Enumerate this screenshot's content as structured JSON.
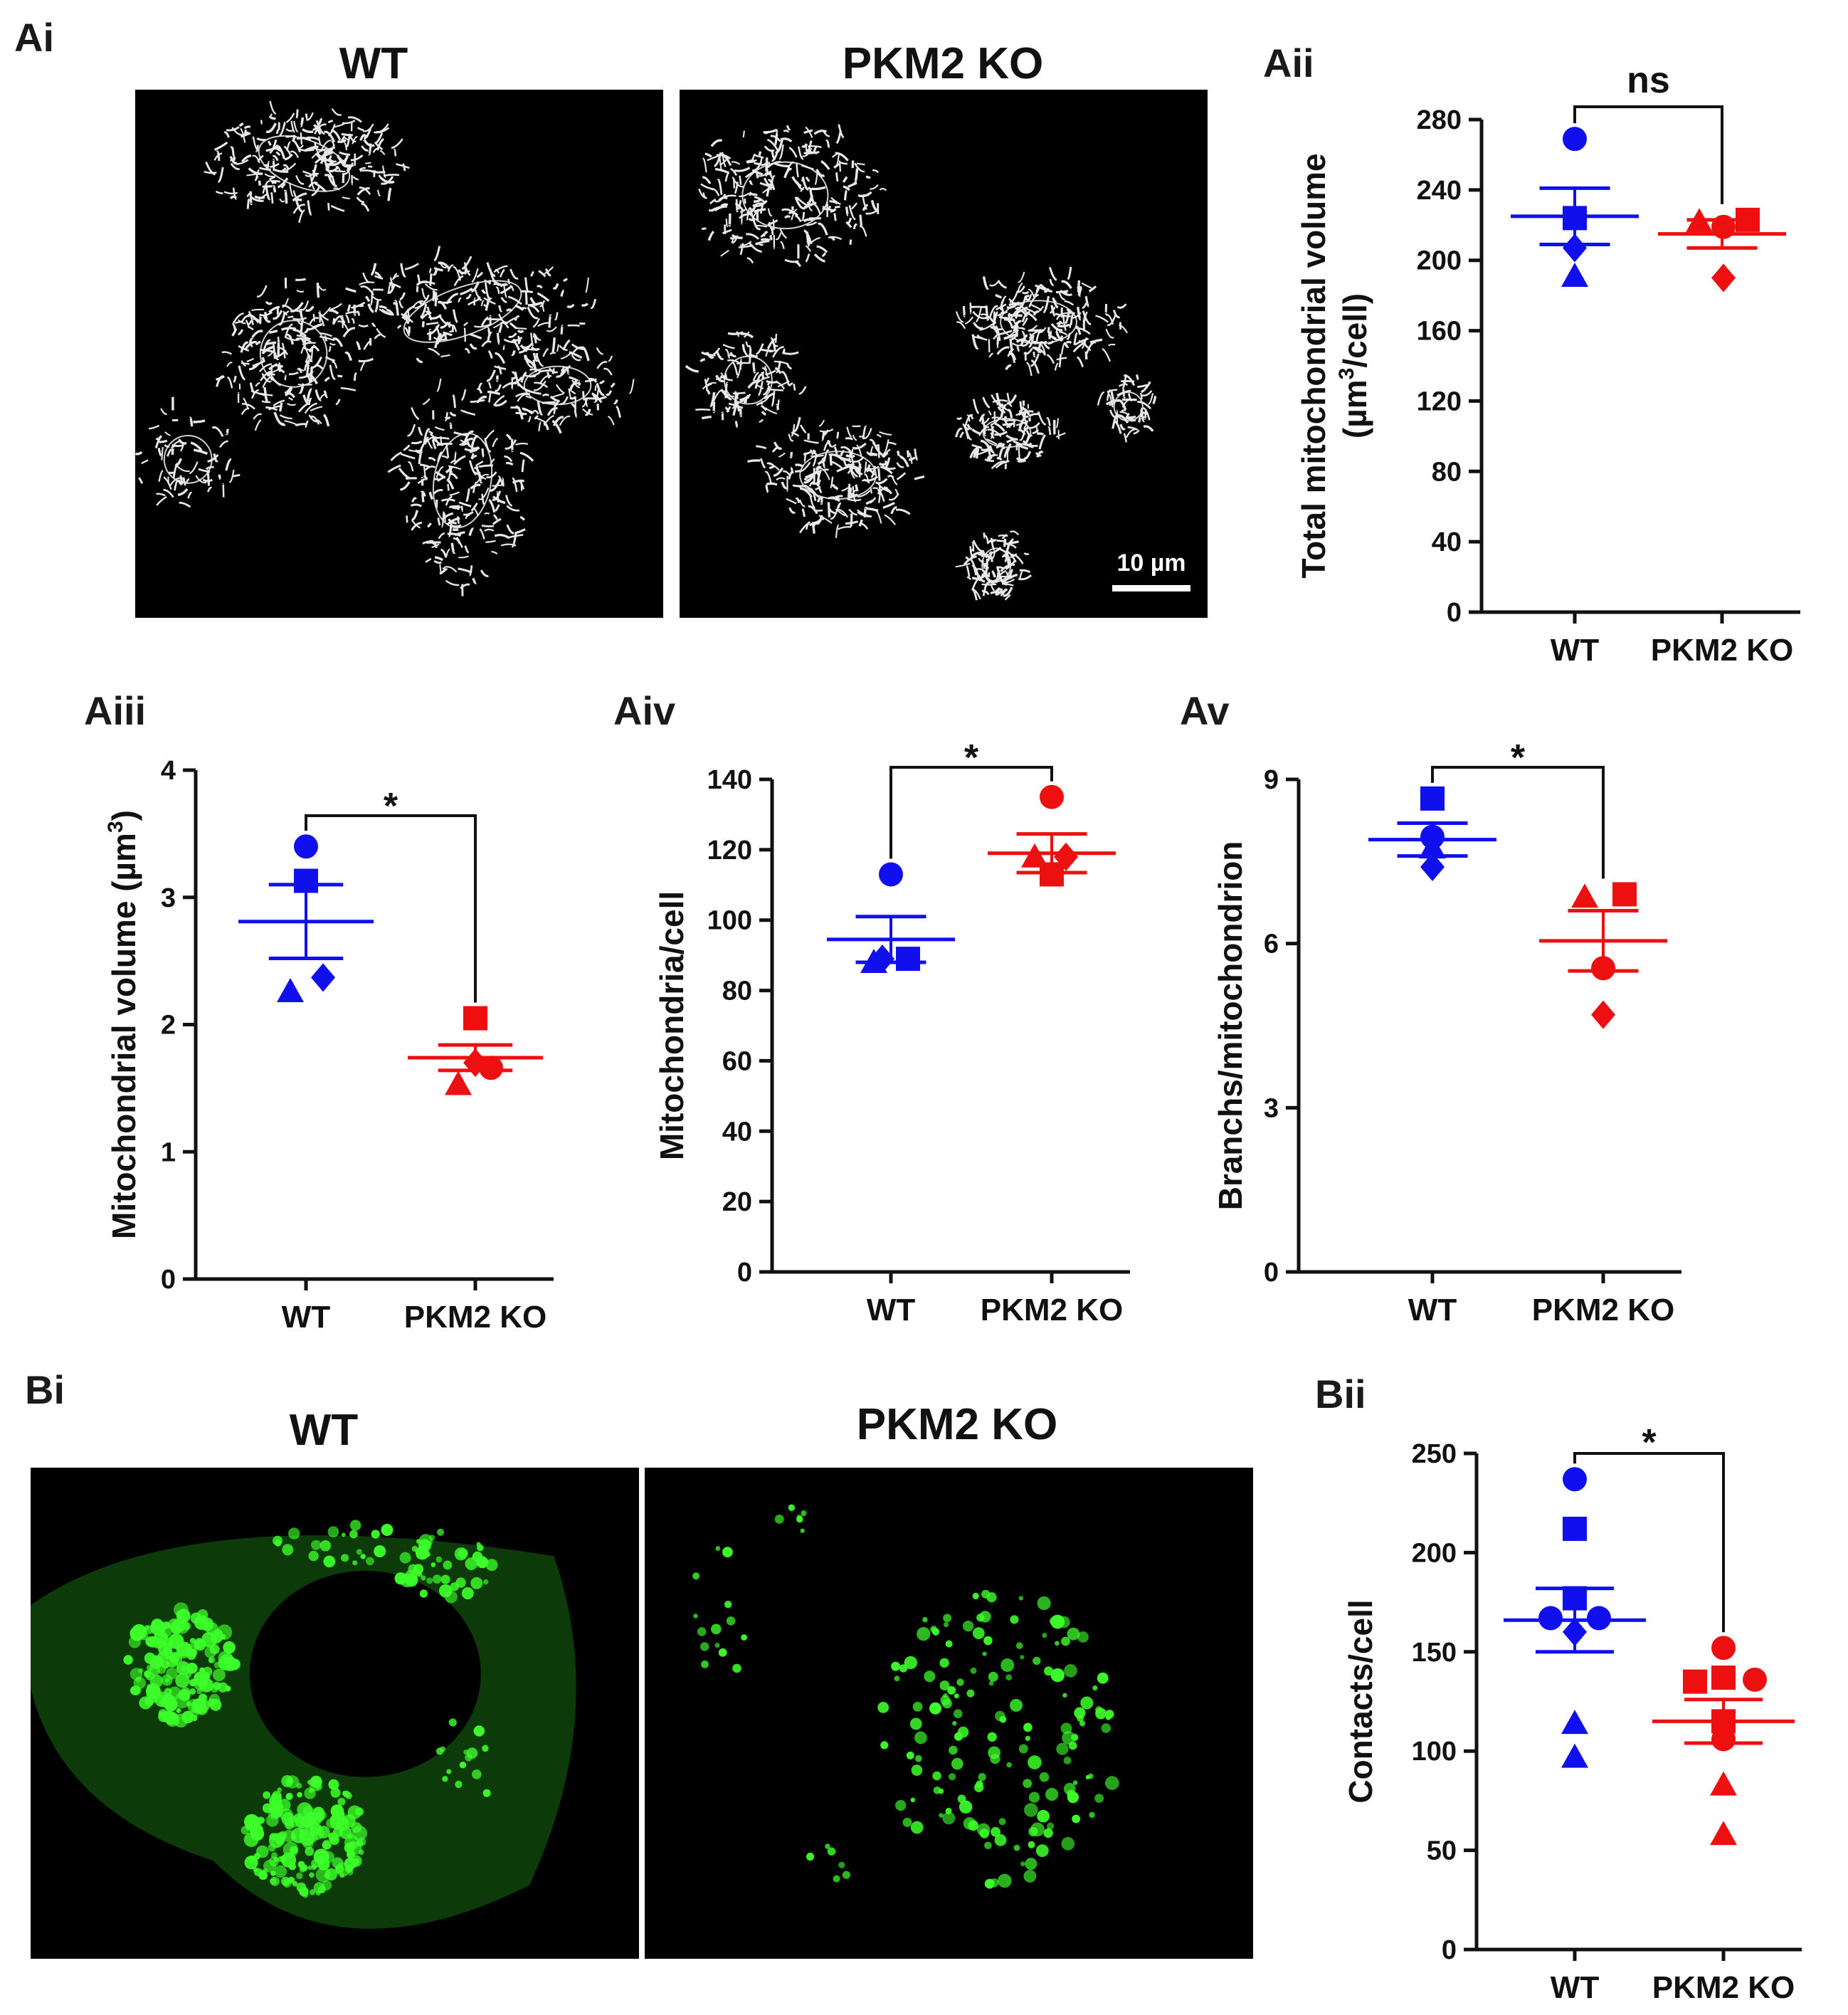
{
  "panels": {
    "Ai": {
      "label": "Ai",
      "images": [
        {
          "title": "WT",
          "depicts": "mitochondria-network-grayscale"
        },
        {
          "title": "PKM2 KO",
          "depicts": "mitochondria-network-grayscale"
        }
      ],
      "scale_bar": "10 µm"
    },
    "Aiii": {
      "label": "Aiii"
    },
    "Aiv": {
      "label": "Aiv"
    },
    "Av": {
      "label": "Av"
    },
    "Aii": {
      "label": "Aii"
    },
    "Bi": {
      "label": "Bi",
      "images": [
        {
          "title": "WT",
          "depicts": "green-fluorescent-puncta"
        },
        {
          "title": "PKM2 KO",
          "depicts": "green-fluorescent-puncta"
        }
      ]
    },
    "Bii": {
      "label": "Bii"
    }
  },
  "colors": {
    "wt": "#1010ee",
    "ko": "#ee1010",
    "axis": "#111111",
    "micrograph_bg": "#000000",
    "fluor": "#3dff2a"
  },
  "chart_data": [
    {
      "id": "Aii",
      "type": "scatter",
      "categories": [
        "WT",
        "PKM2 KO"
      ],
      "ylabel_main": "Total mitochondrial volume",
      "ylabel_unit_pre": "(µm",
      "ylabel_unit_sup": "3",
      "ylabel_unit_post": "/cell)",
      "ylim": [
        0,
        280
      ],
      "yticks": [
        0,
        40,
        80,
        120,
        160,
        200,
        240,
        280
      ],
      "series": [
        {
          "group": "WT",
          "color": "#1010ee",
          "mean": 225,
          "sem": 16,
          "points": [
            {
              "v": 269,
              "m": "circle",
              "dx": 0
            },
            {
              "v": 224,
              "m": "square",
              "dx": 0
            },
            {
              "v": 207,
              "m": "diamond",
              "dx": 0
            },
            {
              "v": 191,
              "m": "triangle",
              "dx": 0
            }
          ]
        },
        {
          "group": "PKM2 KO",
          "color": "#ee1010",
          "mean": 215,
          "sem": 8,
          "points": [
            {
              "v": 222,
              "m": "triangle",
              "dx": -32
            },
            {
              "v": 219,
              "m": "circle",
              "dx": 2
            },
            {
              "v": 223,
              "m": "square",
              "dx": 36
            },
            {
              "v": 190,
              "m": "diamond",
              "dx": 2
            }
          ]
        }
      ],
      "significance": "ns"
    },
    {
      "id": "Aiii",
      "type": "scatter",
      "categories": [
        "WT",
        "PKM2 KO"
      ],
      "ylabel_main": "Mitochondrial volume",
      "ylabel_unit_pre": "(µm",
      "ylabel_unit_sup": "3",
      "ylabel_unit_post": ")",
      "ylim": [
        0,
        4
      ],
      "yticks": [
        0,
        1,
        2,
        3,
        4
      ],
      "series": [
        {
          "group": "WT",
          "color": "#1010ee",
          "mean": 2.81,
          "sem": 0.29,
          "points": [
            {
              "v": 3.4,
              "m": "circle",
              "dx": 0
            },
            {
              "v": 3.13,
              "m": "square",
              "dx": 0
            },
            {
              "v": 2.37,
              "m": "diamond",
              "dx": 24
            },
            {
              "v": 2.26,
              "m": "triangle",
              "dx": -22
            }
          ]
        },
        {
          "group": "PKM2 KO",
          "color": "#ee1010",
          "mean": 1.74,
          "sem": 0.1,
          "points": [
            {
              "v": 2.05,
              "m": "square",
              "dx": 0
            },
            {
              "v": 1.66,
              "m": "circle",
              "dx": 22
            },
            {
              "v": 1.7,
              "m": "diamond",
              "dx": 0
            },
            {
              "v": 1.53,
              "m": "triangle",
              "dx": -24
            }
          ]
        }
      ],
      "significance": "*"
    },
    {
      "id": "Aiv",
      "type": "scatter",
      "categories": [
        "WT",
        "PKM2 KO"
      ],
      "ylabel_main": "Mitochondria/cell",
      "ylim": [
        0,
        140
      ],
      "yticks": [
        0,
        20,
        40,
        60,
        80,
        100,
        120,
        140
      ],
      "series": [
        {
          "group": "WT",
          "color": "#1010ee",
          "mean": 94.5,
          "sem": 6.5,
          "points": [
            {
              "v": 113,
              "m": "circle",
              "dx": 0
            },
            {
              "v": 89,
              "m": "diamond",
              "dx": -12
            },
            {
              "v": 88,
              "m": "triangle",
              "dx": -24
            },
            {
              "v": 89,
              "m": "square",
              "dx": 24
            }
          ]
        },
        {
          "group": "PKM2 KO",
          "color": "#ee1010",
          "mean": 119,
          "sem": 5.5,
          "points": [
            {
              "v": 135,
              "m": "circle",
              "dx": 0
            },
            {
              "v": 118,
              "m": "triangle",
              "dx": -24
            },
            {
              "v": 118,
              "m": "diamond",
              "dx": 20
            },
            {
              "v": 113,
              "m": "square",
              "dx": 0
            }
          ]
        }
      ],
      "significance": "*"
    },
    {
      "id": "Av",
      "type": "scatter",
      "categories": [
        "WT",
        "PKM2 KO"
      ],
      "ylabel_main": "Branchs/mitochondrion",
      "ylim": [
        0,
        9
      ],
      "yticks": [
        0,
        3,
        6,
        9
      ],
      "series": [
        {
          "group": "WT",
          "color": "#1010ee",
          "mean": 7.9,
          "sem": 0.3,
          "points": [
            {
              "v": 8.65,
              "m": "square",
              "dx": 0
            },
            {
              "v": 7.95,
              "m": "circle",
              "dx": 0
            },
            {
              "v": 7.75,
              "m": "triangle",
              "dx": 0
            },
            {
              "v": 7.4,
              "m": "diamond",
              "dx": 0
            }
          ]
        },
        {
          "group": "PKM2 KO",
          "color": "#ee1010",
          "mean": 6.05,
          "sem": 0.55,
          "points": [
            {
              "v": 6.85,
              "m": "triangle",
              "dx": -26
            },
            {
              "v": 6.9,
              "m": "square",
              "dx": 30
            },
            {
              "v": 5.55,
              "m": "circle",
              "dx": 0
            },
            {
              "v": 4.7,
              "m": "diamond",
              "dx": 0
            }
          ]
        }
      ],
      "significance": "*"
    },
    {
      "id": "Bii",
      "type": "scatter",
      "categories": [
        "WT",
        "PKM2 KO"
      ],
      "ylabel_main": "Contacts/cell",
      "ylim": [
        0,
        250
      ],
      "yticks": [
        0,
        50,
        100,
        150,
        200,
        250
      ],
      "series": [
        {
          "group": "WT",
          "color": "#1010ee",
          "mean": 166,
          "sem": 16,
          "points": [
            {
              "v": 237,
              "m": "circle",
              "dx": 0
            },
            {
              "v": 212,
              "m": "square",
              "dx": 0
            },
            {
              "v": 177,
              "m": "square",
              "dx": 0
            },
            {
              "v": 167,
              "m": "circle",
              "dx": -34
            },
            {
              "v": 167,
              "m": "circle",
              "dx": 34
            },
            {
              "v": 160,
              "m": "diamond",
              "dx": 0
            },
            {
              "v": 114,
              "m": "triangle",
              "dx": 0
            },
            {
              "v": 97,
              "m": "triangle",
              "dx": 0
            }
          ]
        },
        {
          "group": "PKM2 KO",
          "color": "#ee1010",
          "mean": 115,
          "sem": 11,
          "points": [
            {
              "v": 152,
              "m": "circle",
              "dx": 0
            },
            {
              "v": 135,
              "m": "square",
              "dx": -40
            },
            {
              "v": 137,
              "m": "square",
              "dx": 0
            },
            {
              "v": 136,
              "m": "circle",
              "dx": 44
            },
            {
              "v": 115,
              "m": "square",
              "dx": 0
            },
            {
              "v": 106,
              "m": "circle",
              "dx": 0
            },
            {
              "v": 83,
              "m": "triangle",
              "dx": 0
            },
            {
              "v": 58,
              "m": "triangle",
              "dx": 0
            }
          ]
        }
      ],
      "significance": "*"
    }
  ]
}
